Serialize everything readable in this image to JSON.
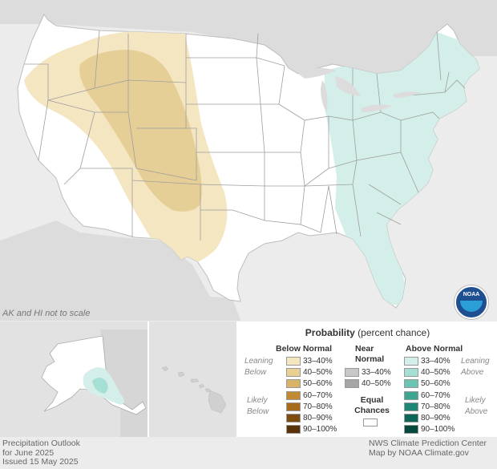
{
  "map_note": "AK and HI not to scale",
  "logo": {
    "text": "NOAA",
    "icon": "noaa-logo-icon"
  },
  "legend": {
    "title_bold": "Probability",
    "title_rest": " (percent chance)",
    "below": {
      "heading": "Below Normal",
      "leaning": "Leaning",
      "leaning2": "Below",
      "likely": "Likely",
      "likely2": "Below",
      "items": [
        {
          "label": "33–40%",
          "color": "#f5e6c2"
        },
        {
          "label": "40–50%",
          "color": "#e8cf92"
        },
        {
          "label": "50–60%",
          "color": "#d8b46a"
        },
        {
          "label": "60–70%",
          "color": "#c08a35"
        },
        {
          "label": "70–80%",
          "color": "#a76b1e"
        },
        {
          "label": "80–90%",
          "color": "#7f4c10"
        },
        {
          "label": "90–100%",
          "color": "#5a3208"
        }
      ]
    },
    "near": {
      "heading1": "Near",
      "heading2": "Normal",
      "items": [
        {
          "label": "33–40%",
          "color": "#c8c8c8"
        },
        {
          "label": "40–50%",
          "color": "#a6a6a6"
        }
      ],
      "equal1": "Equal",
      "equal2": "Chances"
    },
    "above": {
      "heading": "Above Normal",
      "leaning": "Leaning",
      "leaning2": "Above",
      "likely": "Likely",
      "likely2": "Above",
      "items": [
        {
          "label": "33–40%",
          "color": "#d4efe9"
        },
        {
          "label": "40–50%",
          "color": "#a6dfd3"
        },
        {
          "label": "50–60%",
          "color": "#6cc4b2"
        },
        {
          "label": "60–70%",
          "color": "#3ea593"
        },
        {
          "label": "70–80%",
          "color": "#1e8674"
        },
        {
          "label": "80–90%",
          "color": "#0d6657"
        },
        {
          "label": "90–100%",
          "color": "#05483c"
        }
      ]
    }
  },
  "footer": {
    "line1": "Precipitation Outlook",
    "line2": "for June 2025",
    "line3": "Issued 15 May 2025",
    "credit1": "NWS Climate Prediction Center",
    "credit2": "Map by NOAA Climate.gov"
  }
}
